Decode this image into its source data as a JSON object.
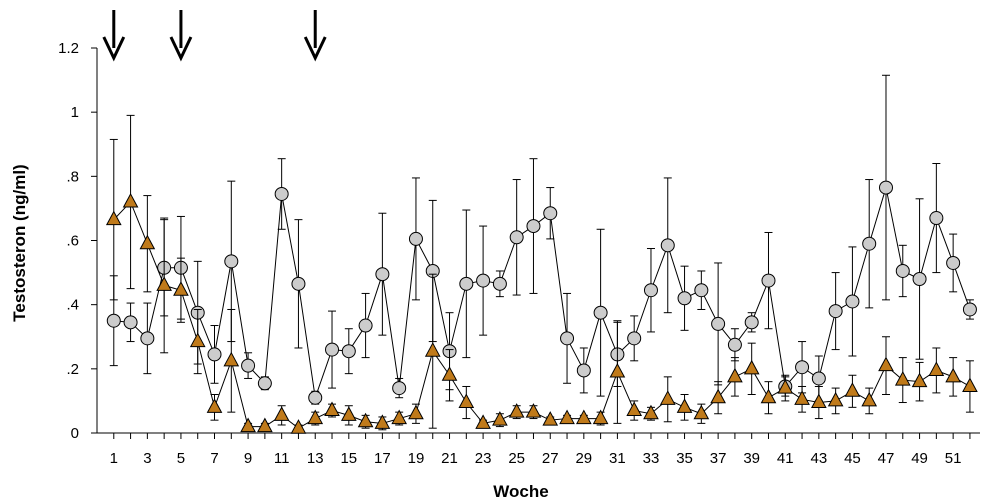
{
  "chart_data": {
    "type": "line",
    "title": "",
    "xlabel": "Woche",
    "ylabel": "Testosteron (ng/ml)",
    "ylim": [
      0,
      1.2
    ],
    "xlim": [
      0,
      52.6
    ],
    "grid": false,
    "legend": "none",
    "y_ticks": [
      {
        "value": 0,
        "label": "0"
      },
      {
        "value": 0.2,
        "label": ".2"
      },
      {
        "value": 0.4,
        "label": ".4"
      },
      {
        "value": 0.6,
        "label": ".6"
      },
      {
        "value": 0.8,
        "label": ".8"
      },
      {
        "value": 1.0,
        "label": "1"
      },
      {
        "value": 1.2,
        "label": "1.2"
      }
    ],
    "x_tick_labels": [
      "1",
      "3",
      "5",
      "7",
      "9",
      "11",
      "13",
      "15",
      "17",
      "19",
      "21",
      "23",
      "25",
      "27",
      "29",
      "31",
      "33",
      "35",
      "37",
      "39",
      "41",
      "43",
      "45",
      "47",
      "49",
      "51"
    ],
    "arrows_at_weeks": [
      1,
      5,
      13
    ],
    "series": [
      {
        "marker": "circle",
        "color": "#cccccc",
        "x": [
          1,
          2,
          3,
          4,
          5,
          6,
          7,
          8,
          9,
          10,
          11,
          12,
          13,
          14,
          15,
          16,
          17,
          18,
          19,
          20,
          21,
          22,
          23,
          24,
          25,
          26,
          27,
          28,
          29,
          30,
          31,
          32,
          33,
          34,
          35,
          36,
          37,
          38,
          39,
          40,
          41,
          42,
          43,
          44,
          45,
          46,
          47,
          48,
          49,
          50,
          51,
          52
        ],
        "y": [
          0.35,
          0.345,
          0.295,
          0.515,
          0.515,
          0.375,
          0.245,
          0.535,
          0.21,
          0.155,
          0.745,
          0.465,
          0.11,
          0.26,
          0.255,
          0.335,
          0.495,
          0.14,
          0.605,
          0.505,
          0.255,
          0.465,
          0.475,
          0.465,
          0.61,
          0.645,
          0.685,
          0.295,
          0.195,
          0.375,
          0.245,
          0.295,
          0.445,
          0.585,
          0.42,
          0.445,
          0.34,
          0.275,
          0.345,
          0.475,
          0.145,
          0.205,
          0.17,
          0.38,
          0.41,
          0.59,
          0.765,
          0.505,
          0.48,
          0.67,
          0.53,
          0.385
        ],
        "err": [
          0.14,
          0.06,
          0.11,
          0.15,
          0.16,
          0.16,
          0.09,
          0.25,
          0.04,
          0.02,
          0.11,
          0.2,
          0.02,
          0.12,
          0.07,
          0.1,
          0.19,
          0.03,
          0.19,
          0.22,
          0.12,
          0.23,
          0.17,
          0.04,
          0.18,
          0.21,
          0.08,
          0.14,
          0.07,
          0.26,
          0.1,
          0.07,
          0.13,
          0.21,
          0.1,
          0.06,
          0.19,
          0.05,
          0.03,
          0.15,
          0.03,
          0.08,
          0.07,
          0.12,
          0.17,
          0.2,
          0.35,
          0.08,
          0.25,
          0.17,
          0.09,
          0.03
        ]
      },
      {
        "marker": "triangle",
        "color": "#c07a1a",
        "x": [
          1,
          2,
          3,
          4,
          5,
          6,
          7,
          8,
          9,
          10,
          11,
          12,
          13,
          14,
          15,
          16,
          17,
          18,
          19,
          20,
          21,
          22,
          23,
          24,
          25,
          26,
          27,
          28,
          29,
          30,
          31,
          32,
          33,
          34,
          35,
          36,
          37,
          38,
          39,
          40,
          41,
          42,
          43,
          44,
          45,
          46,
          47,
          48,
          49,
          50,
          51,
          52
        ],
        "y": [
          0.665,
          0.72,
          0.59,
          0.46,
          0.445,
          0.285,
          0.08,
          0.225,
          0.02,
          0.02,
          0.055,
          0.015,
          0.045,
          0.07,
          0.055,
          0.035,
          0.03,
          0.045,
          0.06,
          0.255,
          0.18,
          0.095,
          0.03,
          0.04,
          0.065,
          0.065,
          0.04,
          0.045,
          0.045,
          0.045,
          0.19,
          0.07,
          0.06,
          0.105,
          0.08,
          0.06,
          0.11,
          0.175,
          0.2,
          0.11,
          0.14,
          0.105,
          0.095,
          0.1,
          0.13,
          0.1,
          0.21,
          0.165,
          0.16,
          0.195,
          0.175,
          0.145
        ],
        "err": [
          0.25,
          0.27,
          0.15,
          0.21,
          0.1,
          0.1,
          0.04,
          0.16,
          0.01,
          0.01,
          0.03,
          0.01,
          0.02,
          0.02,
          0.03,
          0.02,
          0.02,
          0.02,
          0.03,
          0.24,
          0.08,
          0.05,
          0.01,
          0.02,
          0.02,
          0.02,
          0.01,
          0.01,
          0.01,
          0.02,
          0.16,
          0.03,
          0.02,
          0.07,
          0.04,
          0.03,
          0.05,
          0.06,
          0.08,
          0.05,
          0.04,
          0.04,
          0.05,
          0.04,
          0.05,
          0.04,
          0.09,
          0.07,
          0.06,
          0.07,
          0.06,
          0.08
        ]
      }
    ]
  }
}
